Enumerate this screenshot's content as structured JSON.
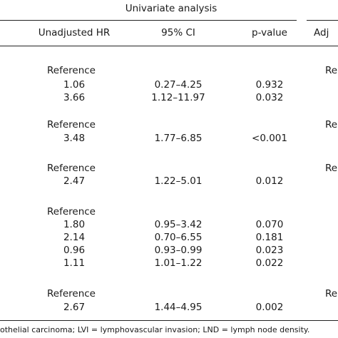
{
  "header": {
    "group_title": "Univariate analysis",
    "col_hr": "Unadjusted HR",
    "col_ci": "95% CI",
    "col_p": "p-value",
    "col_adj_partial": "Adj"
  },
  "groups": [
    {
      "reference": "Reference",
      "adj_reference": "Re",
      "rows": [
        {
          "hr": "1.06",
          "ci": "0.27–4.25",
          "p": "0.932"
        },
        {
          "hr": "3.66",
          "ci": "1.12–11.97",
          "p": "0.032"
        }
      ]
    },
    {
      "reference": "Reference",
      "adj_reference": "Re",
      "rows": [
        {
          "hr": "3.48",
          "ci": "1.77–6.85",
          "p": "<0.001"
        }
      ]
    },
    {
      "reference": "Reference",
      "adj_reference": "Re",
      "rows": [
        {
          "hr": "2.47",
          "ci": "1.22–5.01",
          "p": "0.012"
        }
      ]
    },
    {
      "reference": "Reference",
      "adj_reference": "",
      "rows": [
        {
          "hr": "1.80",
          "ci": "0.95–3.42",
          "p": "0.070"
        },
        {
          "hr": "2.14",
          "ci": "0.70–6.55",
          "p": "0.181"
        },
        {
          "hr": "0.96",
          "ci": "0.93–0.99",
          "p": "0.023"
        },
        {
          "hr": "1.11",
          "ci": "1.01–1.22",
          "p": "0.022"
        }
      ]
    },
    {
      "reference": "Reference",
      "adj_reference": "Re",
      "rows": [
        {
          "hr": "2.67",
          "ci": "1.44–4.95",
          "p": "0.002"
        }
      ]
    }
  ],
  "footnote": "othelial carcinoma; LVI = lymphovascular invasion; LND = lymph node density."
}
